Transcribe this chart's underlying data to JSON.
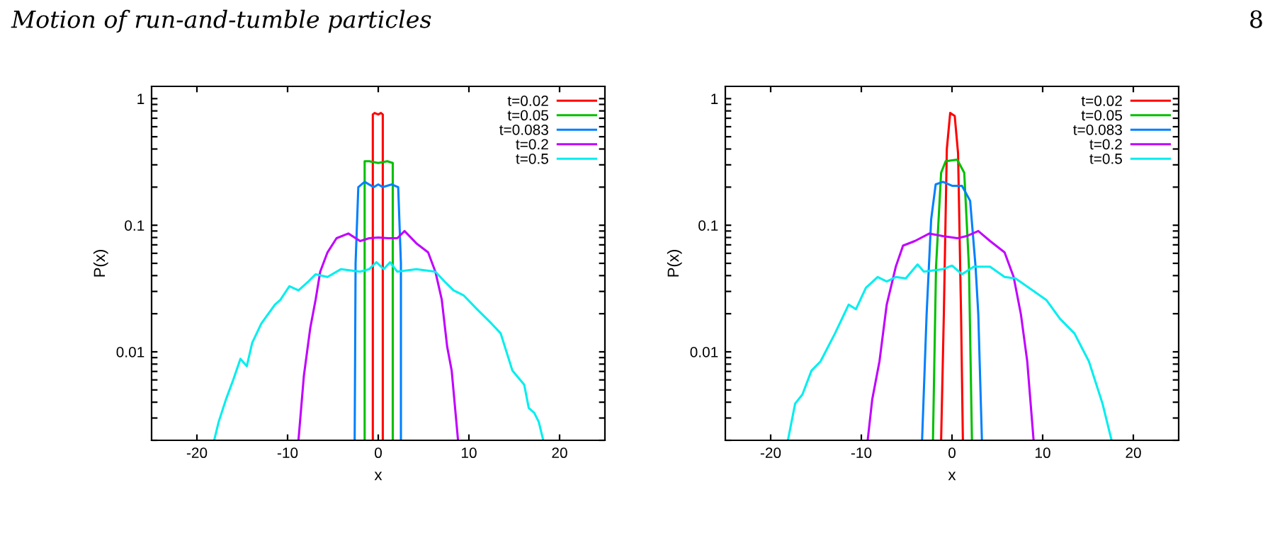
{
  "chart_data": [
    {
      "type": "line",
      "xlabel": "x",
      "ylabel": "P(x)",
      "log": "y",
      "xlim": [
        -25,
        25
      ],
      "xticks": [
        -20,
        -10,
        0,
        10,
        20
      ],
      "ylim": [
        0.002,
        1.25
      ],
      "yticks": [
        {
          "value": 0.002,
          "label": null
        },
        {
          "value": 0.003,
          "label": null
        },
        {
          "value": 0.004,
          "label": null
        },
        {
          "value": 0.005,
          "label": null
        },
        {
          "value": 0.006,
          "label": null
        },
        {
          "value": 0.007,
          "label": null
        },
        {
          "value": 0.008,
          "label": null
        },
        {
          "value": 0.009,
          "label": null
        },
        {
          "value": 0.01,
          "label": "0.01"
        },
        {
          "value": 0.02,
          "label": null
        },
        {
          "value": 0.03,
          "label": null
        },
        {
          "value": 0.04,
          "label": null
        },
        {
          "value": 0.05,
          "label": null
        },
        {
          "value": 0.06,
          "label": null
        },
        {
          "value": 0.07,
          "label": null
        },
        {
          "value": 0.08,
          "label": null
        },
        {
          "value": 0.09,
          "label": null
        },
        {
          "value": 0.1,
          "label": "0.1"
        },
        {
          "value": 0.2,
          "label": null
        },
        {
          "value": 0.3,
          "label": null
        },
        {
          "value": 0.4,
          "label": null
        },
        {
          "value": 0.5,
          "label": null
        },
        {
          "value": 0.6,
          "label": null
        },
        {
          "value": 0.7,
          "label": null
        },
        {
          "value": 0.8,
          "label": null
        },
        {
          "value": 0.9,
          "label": null
        },
        {
          "value": 1,
          "label": "1"
        }
      ],
      "legend": "top right",
      "grid": false,
      "annotations": [
        "Motion of run-and-tumble particles",
        "8"
      ],
      "series": [
        {
          "name": "t=0.02",
          "color": "#ff0000",
          "x": [
            -0.6,
            -0.6,
            -0.4,
            0,
            0.3,
            0.5,
            0.5
          ],
          "values": [
            0.002,
            0.75,
            0.77,
            0.75,
            0.77,
            0.75,
            0.002
          ]
        },
        {
          "name": "t=0.05",
          "color": "#00c000",
          "x": [
            -1.5,
            -1.5,
            -1,
            0,
            1,
            1.6,
            1.6
          ],
          "values": [
            0.002,
            0.32,
            0.32,
            0.31,
            0.32,
            0.31,
            0.002
          ]
        },
        {
          "name": "t=0.083",
          "color": "#0080ff",
          "x": [
            -2.6,
            -2.5,
            -2.2,
            -1.5,
            -0.5,
            0,
            0.5,
            1.5,
            2.2,
            2.5,
            2.5
          ],
          "values": [
            0.002,
            0.05,
            0.2,
            0.22,
            0.2,
            0.21,
            0.2,
            0.21,
            0.2,
            0.05,
            0.002
          ]
        },
        {
          "name": "t=0.2",
          "color": "#c000ff",
          "x": [
            -8.8,
            -8.2,
            -7.5,
            -6.9,
            -6.4,
            -5.6,
            -4.6,
            -3.3,
            -2.0,
            -1.0,
            0,
            1.1,
            2.1,
            2.9,
            4.2,
            5.5,
            6.3,
            7.0,
            7.6,
            8.1,
            8.8
          ],
          "values": [
            0.002,
            0.0065,
            0.0154,
            0.026,
            0.043,
            0.061,
            0.079,
            0.086,
            0.075,
            0.079,
            0.08,
            0.079,
            0.079,
            0.09,
            0.072,
            0.061,
            0.043,
            0.026,
            0.011,
            0.0071,
            0.002
          ]
        },
        {
          "name": "t=0.5",
          "color": "#00eeee",
          "x": [
            -18.1,
            -17.6,
            -16.8,
            -16.0,
            -15.2,
            -14.5,
            -13.9,
            -12.9,
            -11.4,
            -10.8,
            -9.8,
            -8.8,
            -7.7,
            -6.9,
            -5.6,
            -4.1,
            -2.0,
            -1.0,
            -0.2,
            0.6,
            1.3,
            2.1,
            4.2,
            6.3,
            7.3,
            8.3,
            9.4,
            10.9,
            12.5,
            13.5,
            14.8,
            16.1,
            16.6,
            17.2,
            17.7,
            18.2
          ],
          "values": [
            0.002,
            0.0028,
            0.0042,
            0.006,
            0.0088,
            0.0077,
            0.0118,
            0.0167,
            0.0236,
            0.0257,
            0.033,
            0.0306,
            0.036,
            0.041,
            0.039,
            0.045,
            0.043,
            0.045,
            0.051,
            0.045,
            0.051,
            0.043,
            0.045,
            0.043,
            0.036,
            0.0306,
            0.028,
            0.0217,
            0.0167,
            0.014,
            0.0071,
            0.0055,
            0.0036,
            0.0033,
            0.0028,
            0.002
          ]
        }
      ]
    },
    {
      "type": "line",
      "xlabel": "x",
      "ylabel": "P(x)",
      "log": "y",
      "xlim": [
        -25,
        25
      ],
      "xticks": [
        -20,
        -10,
        0,
        10,
        20
      ],
      "ylim": [
        0.002,
        1.25
      ],
      "yticks": [
        {
          "value": 0.002,
          "label": null
        },
        {
          "value": 0.003,
          "label": null
        },
        {
          "value": 0.004,
          "label": null
        },
        {
          "value": 0.005,
          "label": null
        },
        {
          "value": 0.006,
          "label": null
        },
        {
          "value": 0.007,
          "label": null
        },
        {
          "value": 0.008,
          "label": null
        },
        {
          "value": 0.009,
          "label": null
        },
        {
          "value": 0.01,
          "label": "0.01"
        },
        {
          "value": 0.02,
          "label": null
        },
        {
          "value": 0.03,
          "label": null
        },
        {
          "value": 0.04,
          "label": null
        },
        {
          "value": 0.05,
          "label": null
        },
        {
          "value": 0.06,
          "label": null
        },
        {
          "value": 0.07,
          "label": null
        },
        {
          "value": 0.08,
          "label": null
        },
        {
          "value": 0.09,
          "label": null
        },
        {
          "value": 0.1,
          "label": "0.1"
        },
        {
          "value": 0.2,
          "label": null
        },
        {
          "value": 0.3,
          "label": null
        },
        {
          "value": 0.4,
          "label": null
        },
        {
          "value": 0.5,
          "label": null
        },
        {
          "value": 0.6,
          "label": null
        },
        {
          "value": 0.7,
          "label": null
        },
        {
          "value": 0.8,
          "label": null
        },
        {
          "value": 0.9,
          "label": null
        },
        {
          "value": 1,
          "label": "1"
        }
      ],
      "legend": "top right",
      "grid": false,
      "series": [
        {
          "name": "t=0.02",
          "color": "#ff0000",
          "x": [
            -1.2,
            -0.9,
            -0.57,
            -0.2,
            0.3,
            0.67,
            1.0,
            1.2
          ],
          "values": [
            0.002,
            0.0198,
            0.4,
            0.77,
            0.73,
            0.37,
            0.0198,
            0.002
          ]
        },
        {
          "name": "t=0.05",
          "color": "#00c000",
          "x": [
            -2.1,
            -1.76,
            -1.2,
            -0.7,
            0.57,
            1.35,
            1.87,
            2.2
          ],
          "values": [
            0.002,
            0.047,
            0.26,
            0.32,
            0.33,
            0.26,
            0.047,
            0.002
          ]
        },
        {
          "name": "t=0.083",
          "color": "#0080ff",
          "x": [
            -3.3,
            -2.8,
            -2.3,
            -1.8,
            -1.0,
            0,
            1.1,
            2.0,
            2.6,
            2.9,
            3.3
          ],
          "values": [
            0.002,
            0.0198,
            0.111,
            0.21,
            0.22,
            0.205,
            0.205,
            0.156,
            0.047,
            0.0198,
            0.002
          ]
        },
        {
          "name": "t=0.2",
          "color": "#c000ff",
          "x": [
            -9.3,
            -8.8,
            -8.0,
            -7.2,
            -6.2,
            -5.4,
            -4.1,
            -2.5,
            -1.0,
            0.6,
            1.6,
            2.9,
            4.2,
            5.8,
            6.8,
            7.6,
            8.3,
            9.0
          ],
          "values": [
            0.002,
            0.0042,
            0.0084,
            0.0236,
            0.047,
            0.069,
            0.075,
            0.086,
            0.082,
            0.079,
            0.082,
            0.09,
            0.075,
            0.061,
            0.039,
            0.0198,
            0.0084,
            0.002
          ]
        },
        {
          "name": "t=0.5",
          "color": "#00eeee",
          "x": [
            -18.1,
            -17.3,
            -16.5,
            -15.5,
            -14.5,
            -12.9,
            -11.4,
            -10.6,
            -9.5,
            -8.2,
            -7.2,
            -6.2,
            -5.1,
            -3.8,
            -3.1,
            -1.0,
            0,
            1.1,
            2.4,
            4.2,
            5.8,
            7.0,
            8.9,
            10.4,
            11.9,
            13.5,
            15.1,
            16.6,
            17.6
          ],
          "values": [
            0.002,
            0.0039,
            0.0046,
            0.0071,
            0.0084,
            0.014,
            0.0236,
            0.0217,
            0.032,
            0.039,
            0.036,
            0.039,
            0.038,
            0.049,
            0.043,
            0.045,
            0.048,
            0.041,
            0.047,
            0.047,
            0.039,
            0.038,
            0.0306,
            0.0257,
            0.0183,
            0.014,
            0.0084,
            0.0039,
            0.002
          ]
        }
      ]
    }
  ]
}
